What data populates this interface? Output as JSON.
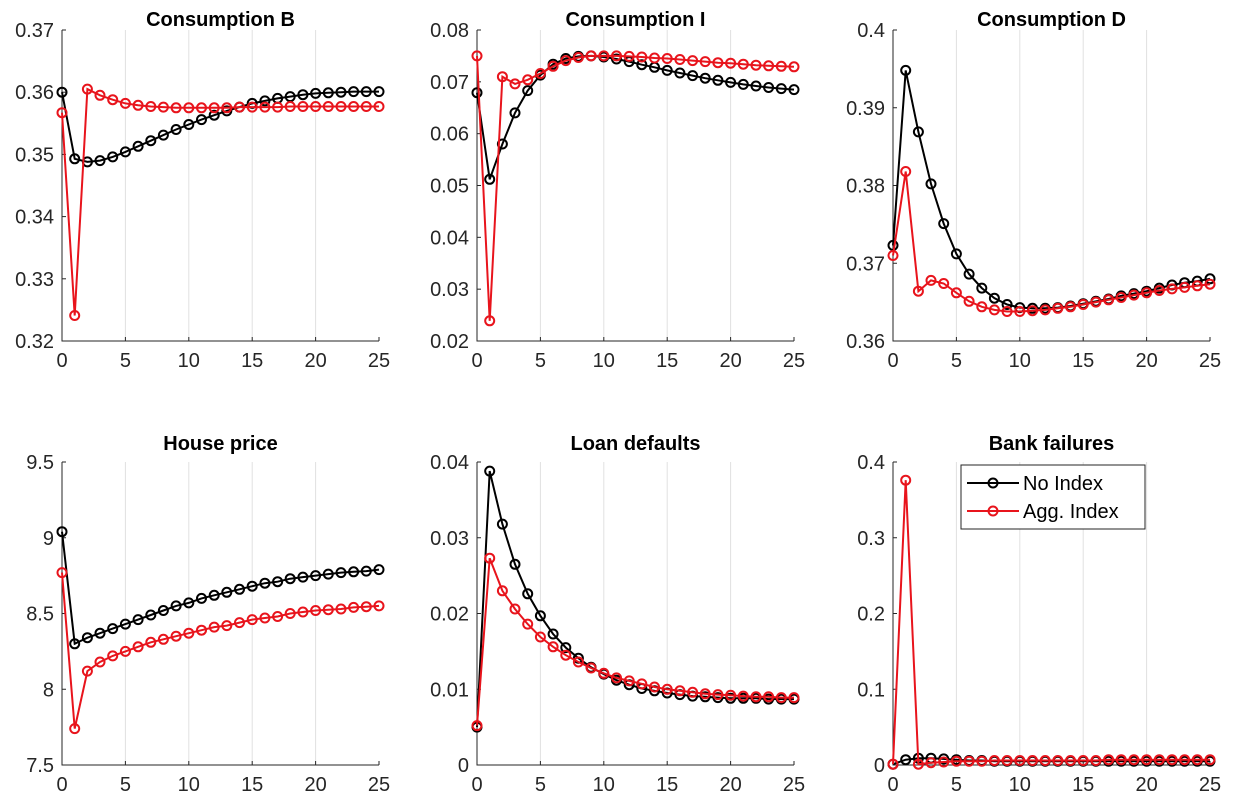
{
  "colors": {
    "no_index": "#000000",
    "agg_index": "#e8141c"
  },
  "chart_data": [
    {
      "type": "line",
      "title": "Consumption B",
      "xlim": [
        0,
        25
      ],
      "ylim": [
        0.32,
        0.37
      ],
      "xticks": [
        0,
        5,
        10,
        15,
        20,
        25
      ],
      "yticks": [
        0.32,
        0.33,
        0.34,
        0.35,
        0.36,
        0.37
      ],
      "ytick_labels": [
        "0.32",
        "0.33",
        "0.34",
        "0.35",
        "0.36",
        "0.37"
      ],
      "grid": "x",
      "series": [
        {
          "key": "no_index",
          "values": [
            0.36,
            0.3493,
            0.3488,
            0.349,
            0.3496,
            0.3504,
            0.3513,
            0.3522,
            0.3531,
            0.354,
            0.3548,
            0.3556,
            0.3563,
            0.357,
            0.3576,
            0.3582,
            0.3586,
            0.359,
            0.3593,
            0.3596,
            0.3598,
            0.3599,
            0.36,
            0.3601,
            0.3601,
            0.3601
          ]
        },
        {
          "key": "agg_index",
          "values": [
            0.3567,
            0.3241,
            0.3605,
            0.3595,
            0.3588,
            0.3582,
            0.3579,
            0.3577,
            0.3576,
            0.3575,
            0.3575,
            0.3575,
            0.3575,
            0.3575,
            0.3576,
            0.3576,
            0.3576,
            0.3576,
            0.3577,
            0.3577,
            0.3577,
            0.3577,
            0.3577,
            0.3577,
            0.3577,
            0.3577
          ]
        }
      ]
    },
    {
      "type": "line",
      "title": "Consumption I",
      "xlim": [
        0,
        25
      ],
      "ylim": [
        0.02,
        0.08
      ],
      "xticks": [
        0,
        5,
        10,
        15,
        20,
        25
      ],
      "yticks": [
        0.02,
        0.03,
        0.04,
        0.05,
        0.06,
        0.07,
        0.08
      ],
      "ytick_labels": [
        "0.02",
        "0.03",
        "0.04",
        "0.05",
        "0.06",
        "0.07",
        "0.08"
      ],
      "grid": "x",
      "series": [
        {
          "key": "no_index",
          "values": [
            0.0679,
            0.0512,
            0.058,
            0.064,
            0.0683,
            0.0713,
            0.0734,
            0.0745,
            0.0749,
            0.075,
            0.0748,
            0.0744,
            0.0739,
            0.0733,
            0.0728,
            0.0722,
            0.0717,
            0.0712,
            0.0707,
            0.0703,
            0.0699,
            0.0695,
            0.0692,
            0.0689,
            0.0687,
            0.0685
          ]
        },
        {
          "key": "agg_index",
          "values": [
            0.075,
            0.0239,
            0.071,
            0.0696,
            0.0704,
            0.0716,
            0.073,
            0.0741,
            0.0747,
            0.075,
            0.075,
            0.075,
            0.0749,
            0.0748,
            0.0746,
            0.0745,
            0.0743,
            0.0741,
            0.0739,
            0.0737,
            0.0736,
            0.0734,
            0.0732,
            0.0731,
            0.073,
            0.0729
          ]
        }
      ]
    },
    {
      "type": "line",
      "title": "Consumption D",
      "xlim": [
        0,
        25
      ],
      "ylim": [
        0.36,
        0.4
      ],
      "xticks": [
        0,
        5,
        10,
        15,
        20,
        25
      ],
      "yticks": [
        0.36,
        0.37,
        0.38,
        0.39,
        0.4
      ],
      "ytick_labels": [
        "0.36",
        "0.37",
        "0.38",
        "0.39",
        "0.4"
      ],
      "grid": "x",
      "series": [
        {
          "key": "no_index",
          "values": [
            0.3723,
            0.3948,
            0.3869,
            0.3802,
            0.3751,
            0.3712,
            0.3686,
            0.3668,
            0.3655,
            0.3647,
            0.3643,
            0.3642,
            0.3642,
            0.3643,
            0.3645,
            0.3648,
            0.3651,
            0.3654,
            0.3658,
            0.3661,
            0.3664,
            0.3668,
            0.3672,
            0.3675,
            0.3677,
            0.368
          ]
        },
        {
          "key": "agg_index",
          "values": [
            0.371,
            0.3818,
            0.3664,
            0.3678,
            0.3674,
            0.3662,
            0.3651,
            0.3644,
            0.364,
            0.3638,
            0.3638,
            0.3639,
            0.364,
            0.3642,
            0.3644,
            0.3647,
            0.365,
            0.3653,
            0.3656,
            0.3659,
            0.3662,
            0.3665,
            0.3667,
            0.3669,
            0.3671,
            0.3673
          ]
        }
      ]
    },
    {
      "type": "line",
      "title": "House price",
      "xlim": [
        0,
        25
      ],
      "ylim": [
        7.5,
        9.5
      ],
      "xticks": [
        0,
        5,
        10,
        15,
        20,
        25
      ],
      "yticks": [
        7.5,
        8,
        8.5,
        9,
        9.5
      ],
      "ytick_labels": [
        "7.5",
        "8",
        "8.5",
        "9",
        "9.5"
      ],
      "grid": "x",
      "series": [
        {
          "key": "no_index",
          "values": [
            9.04,
            8.3,
            8.34,
            8.37,
            8.4,
            8.43,
            8.46,
            8.49,
            8.52,
            8.55,
            8.57,
            8.6,
            8.62,
            8.64,
            8.66,
            8.68,
            8.7,
            8.71,
            8.73,
            8.74,
            8.75,
            8.76,
            8.77,
            8.775,
            8.78,
            8.79
          ]
        },
        {
          "key": "agg_index",
          "values": [
            8.77,
            7.74,
            8.12,
            8.18,
            8.22,
            8.25,
            8.28,
            8.31,
            8.33,
            8.35,
            8.37,
            8.39,
            8.41,
            8.42,
            8.44,
            8.46,
            8.47,
            8.48,
            8.5,
            8.51,
            8.52,
            8.525,
            8.53,
            8.54,
            8.545,
            8.55
          ]
        }
      ]
    },
    {
      "type": "line",
      "title": "Loan defaults",
      "xlim": [
        0,
        25
      ],
      "ylim": [
        0,
        0.04
      ],
      "xticks": [
        0,
        5,
        10,
        15,
        20,
        25
      ],
      "yticks": [
        0,
        0.01,
        0.02,
        0.03,
        0.04
      ],
      "ytick_labels": [
        "0",
        "0.01",
        "0.02",
        "0.03",
        "0.04"
      ],
      "grid": "x",
      "series": [
        {
          "key": "no_index",
          "values": [
            0.005,
            0.0388,
            0.0318,
            0.0265,
            0.0226,
            0.0197,
            0.0173,
            0.0155,
            0.0141,
            0.0129,
            0.012,
            0.0112,
            0.0106,
            0.0101,
            0.0098,
            0.0095,
            0.0093,
            0.0091,
            0.009,
            0.0089,
            0.0088,
            0.0088,
            0.0088,
            0.0087,
            0.0087,
            0.0087
          ]
        },
        {
          "key": "agg_index",
          "values": [
            0.0052,
            0.0273,
            0.023,
            0.0206,
            0.0186,
            0.0169,
            0.0156,
            0.0145,
            0.0136,
            0.0128,
            0.0121,
            0.0115,
            0.0111,
            0.0107,
            0.0103,
            0.01,
            0.0098,
            0.0096,
            0.0094,
            0.0093,
            0.0092,
            0.0091,
            0.009,
            0.009,
            0.0089,
            0.0089
          ]
        }
      ]
    },
    {
      "type": "line",
      "title": "Bank failures",
      "xlim": [
        0,
        25
      ],
      "ylim": [
        0,
        0.4
      ],
      "xticks": [
        0,
        5,
        10,
        15,
        20,
        25
      ],
      "yticks": [
        0,
        0.1,
        0.2,
        0.3,
        0.4
      ],
      "ytick_labels": [
        "0",
        "0.1",
        "0.2",
        "0.3",
        "0.4"
      ],
      "grid": "x",
      "legend": {
        "placement": "top-right",
        "entries": [
          {
            "key": "no_index",
            "label": "No Index"
          },
          {
            "key": "agg_index",
            "label": "Agg. Index"
          }
        ]
      },
      "series": [
        {
          "key": "no_index",
          "values": [
            0.001,
            0.007,
            0.009,
            0.009,
            0.008,
            0.007,
            0.006,
            0.006,
            0.005,
            0.005,
            0.005,
            0.005,
            0.005,
            0.005,
            0.005,
            0.005,
            0.005,
            0.005,
            0.005,
            0.005,
            0.005,
            0.005,
            0.005,
            0.005,
            0.005,
            0.005
          ]
        },
        {
          "key": "agg_index",
          "values": [
            0.001,
            0.376,
            0.001,
            0.003,
            0.004,
            0.005,
            0.005,
            0.005,
            0.006,
            0.006,
            0.006,
            0.006,
            0.006,
            0.006,
            0.006,
            0.006,
            0.006,
            0.007,
            0.007,
            0.007,
            0.007,
            0.007,
            0.007,
            0.007,
            0.007,
            0.007
          ]
        }
      ]
    }
  ]
}
